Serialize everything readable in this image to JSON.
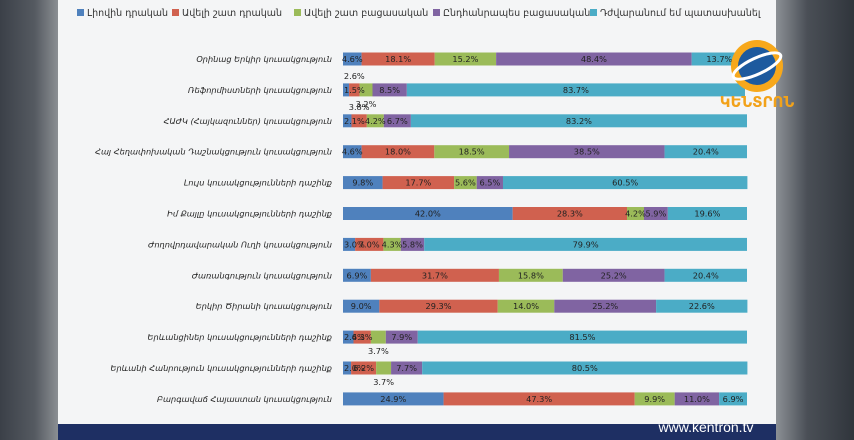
{
  "channel": {
    "logo_text": "ԿԵՆՏՐՈՆ",
    "watermark": "www.kentron.tv"
  },
  "chart_data": {
    "type": "bar",
    "stacked": true,
    "orientation": "horizontal",
    "legend_position": "top",
    "series": [
      {
        "name": "Լիովին դրական",
        "color": "#4f81bd",
        "values": [
          4.6,
          1.5,
          2.1,
          4.6,
          9.8,
          42.0,
          3.0,
          6.9,
          9.0,
          2.6,
          2.0,
          24.9
        ]
      },
      {
        "name": "Ավելի շատ դրական",
        "color": "#d0614f",
        "values": [
          18.1,
          2.6,
          3.8,
          18.0,
          17.7,
          28.3,
          7.0,
          31.7,
          29.3,
          4.3,
          6.2,
          47.3
        ]
      },
      {
        "name": "Ավելի շատ բացասական",
        "color": "#9bbb59",
        "values": [
          15.2,
          3.2,
          4.2,
          18.5,
          5.6,
          4.2,
          4.3,
          15.8,
          14.0,
          3.7,
          3.7,
          9.9
        ]
      },
      {
        "name": "Ընդհանրապես բացասական",
        "color": "#8064a2",
        "values": [
          48.4,
          8.5,
          6.7,
          38.5,
          6.5,
          5.9,
          5.8,
          25.2,
          25.2,
          7.9,
          7.7,
          11.0
        ]
      },
      {
        "name": "Դժվարանում եմ պատասխանել",
        "color": "#4bacc6",
        "values": [
          13.7,
          83.7,
          83.2,
          20.4,
          60.5,
          19.6,
          79.9,
          20.4,
          22.6,
          81.5,
          80.5,
          6.9
        ]
      }
    ],
    "categories": [
      "Օրինաց Երկիր կուսակցություն",
      "Ռեֆորմիստների կուսակցություն",
      "ՀԱԺԿ (Հայկազուններ) կուսակցություն",
      "Հայ Հեղափոխական Դաշնակցություն կուսակցություն",
      "Լույս կուսակցությունների դաշինք",
      "Իմ Քայլը կուսակցությունների դաշինք",
      "Ժողովրդավարական Ուղի կուսակցություն",
      "Ժառանգություն կուսակցություն",
      "Երկիր Ծիրանի կուսակցություն",
      "Երևանցիներ կուսակցությունների դաշինք",
      "Երևանի Հանրություն կուսակցությունների դաշինք",
      "Բարգավաճ Հայաստան կուսակցություն"
    ],
    "labels": [
      [
        "4.6%",
        "18.1%",
        "15.2%",
        "48.4%",
        "13.7%"
      ],
      [
        "1.5%",
        "2.6%",
        "3.2%",
        "8.5%",
        "83.7%"
      ],
      [
        "2.1%",
        "3.8%",
        "4.2%",
        "6.7%",
        "83.2%"
      ],
      [
        "4.6%",
        "18.0%",
        "18.5%",
        "38.5%",
        "20.4%"
      ],
      [
        "9.8%",
        "17.7%",
        "5.6%",
        "6.5%",
        "60.5%"
      ],
      [
        "42.0%",
        "28.3%",
        "4.2%",
        "5.9%",
        "19.6%"
      ],
      [
        "3.0%",
        "7.0%",
        "4.3%",
        "5.8%",
        "79.9%"
      ],
      [
        "6.9%",
        "31.7%",
        "15.8%",
        "25.2%",
        "20.4%"
      ],
      [
        "9.0%",
        "29.3%",
        "14.0%",
        "25.2%",
        "22.6%"
      ],
      [
        "2.6%",
        "4.3%",
        "3.7%",
        "7.9%",
        "81.5%"
      ],
      [
        "2.0%",
        "6.2%",
        "3.7%",
        "7.7%",
        "80.5%"
      ],
      [
        "24.9%",
        "47.3%",
        "9.9%",
        "11.0%",
        "6.9%"
      ]
    ]
  }
}
